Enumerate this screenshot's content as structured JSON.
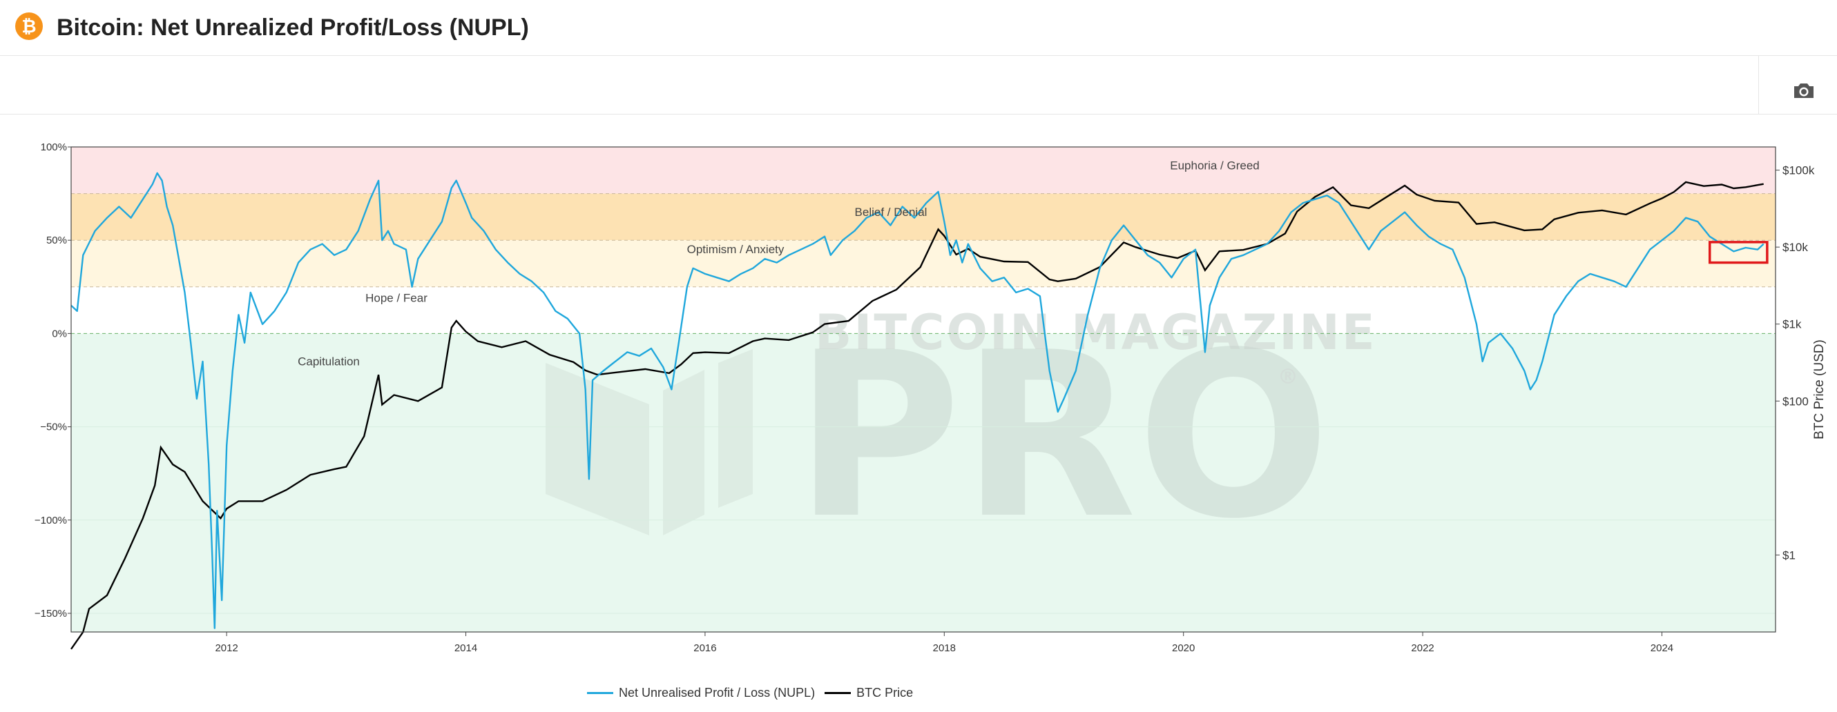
{
  "header": {
    "logo_glyph": "₿",
    "title": "Bitcoin: Net Unrealized Profit/Loss (NUPL)"
  },
  "toolbar": {
    "camera_icon": "camera-icon"
  },
  "watermark": {
    "line1": "BITCOIN MAGAZINE",
    "line2": "PRO",
    "registered": "®"
  },
  "colors": {
    "nupl": "#1fa7dc",
    "price": "#000000",
    "euphoria": "#fde4e6",
    "belief": "#fde2b3",
    "optimism": "#fff6df",
    "hope": "#ffffff",
    "capitulation": "#e8f8ef",
    "highlight": "#e0191b",
    "logo": "#f7931a"
  },
  "chart_data": {
    "type": "line",
    "x_range": [
      2010.7,
      2024.95
    ],
    "x_ticks": [
      "2012",
      "2014",
      "2016",
      "2018",
      "2020",
      "2022",
      "2024"
    ],
    "y_left": {
      "range": [
        -160,
        100
      ],
      "ticks": [
        "100%",
        "50%",
        "0%",
        "−50%",
        "−100%",
        "−150%"
      ]
    },
    "y_right": {
      "type": "log",
      "range": [
        0.1,
        200000
      ],
      "ticks": [
        "$100k",
        "$10k",
        "$1k",
        "$100",
        "$1"
      ],
      "label": "BTC Price (USD)"
    },
    "zones": [
      {
        "name": "Euphoria / Greed",
        "from": 75,
        "to": 100
      },
      {
        "name": "Belief / Denial",
        "from": 50,
        "to": 75
      },
      {
        "name": "Optimism / Anxiety",
        "from": 25,
        "to": 50
      },
      {
        "name": "Hope / Fear",
        "from": 0,
        "to": 25
      },
      {
        "name": "Capitulation",
        "from": -160,
        "to": 0
      }
    ],
    "highlight_box": {
      "x": [
        2024.4,
        2024.88
      ],
      "y": [
        38,
        49
      ]
    },
    "series": [
      {
        "name": "Net Unrealised Profit / Loss (NUPL)",
        "points": [
          [
            2010.7,
            15
          ],
          [
            2010.75,
            12
          ],
          [
            2010.8,
            42
          ],
          [
            2010.9,
            55
          ],
          [
            2011.0,
            62
          ],
          [
            2011.1,
            68
          ],
          [
            2011.2,
            62
          ],
          [
            2011.3,
            72
          ],
          [
            2011.38,
            80
          ],
          [
            2011.42,
            86
          ],
          [
            2011.46,
            82
          ],
          [
            2011.5,
            68
          ],
          [
            2011.55,
            58
          ],
          [
            2011.6,
            40
          ],
          [
            2011.65,
            22
          ],
          [
            2011.7,
            -5
          ],
          [
            2011.75,
            -35
          ],
          [
            2011.8,
            -15
          ],
          [
            2011.85,
            -70
          ],
          [
            2011.88,
            -120
          ],
          [
            2011.9,
            -158
          ],
          [
            2011.92,
            -95
          ],
          [
            2011.96,
            -143
          ],
          [
            2012.0,
            -60
          ],
          [
            2012.05,
            -20
          ],
          [
            2012.1,
            10
          ],
          [
            2012.15,
            -5
          ],
          [
            2012.2,
            22
          ],
          [
            2012.3,
            5
          ],
          [
            2012.4,
            12
          ],
          [
            2012.5,
            22
          ],
          [
            2012.6,
            38
          ],
          [
            2012.7,
            45
          ],
          [
            2012.8,
            48
          ],
          [
            2012.9,
            42
          ],
          [
            2013.0,
            45
          ],
          [
            2013.1,
            55
          ],
          [
            2013.2,
            72
          ],
          [
            2013.27,
            82
          ],
          [
            2013.3,
            50
          ],
          [
            2013.35,
            55
          ],
          [
            2013.4,
            48
          ],
          [
            2013.5,
            45
          ],
          [
            2013.55,
            25
          ],
          [
            2013.6,
            40
          ],
          [
            2013.7,
            50
          ],
          [
            2013.8,
            60
          ],
          [
            2013.88,
            78
          ],
          [
            2013.92,
            82
          ],
          [
            2014.0,
            70
          ],
          [
            2014.05,
            62
          ],
          [
            2014.15,
            55
          ],
          [
            2014.25,
            45
          ],
          [
            2014.35,
            38
          ],
          [
            2014.45,
            32
          ],
          [
            2014.55,
            28
          ],
          [
            2014.65,
            22
          ],
          [
            2014.75,
            12
          ],
          [
            2014.85,
            8
          ],
          [
            2014.95,
            0
          ],
          [
            2015.0,
            -30
          ],
          [
            2015.03,
            -78
          ],
          [
            2015.06,
            -25
          ],
          [
            2015.15,
            -20
          ],
          [
            2015.25,
            -15
          ],
          [
            2015.35,
            -10
          ],
          [
            2015.45,
            -12
          ],
          [
            2015.55,
            -8
          ],
          [
            2015.65,
            -18
          ],
          [
            2015.72,
            -30
          ],
          [
            2015.78,
            -5
          ],
          [
            2015.85,
            25
          ],
          [
            2015.9,
            35
          ],
          [
            2016.0,
            32
          ],
          [
            2016.1,
            30
          ],
          [
            2016.2,
            28
          ],
          [
            2016.3,
            32
          ],
          [
            2016.4,
            35
          ],
          [
            2016.5,
            40
          ],
          [
            2016.6,
            38
          ],
          [
            2016.7,
            42
          ],
          [
            2016.8,
            45
          ],
          [
            2016.9,
            48
          ],
          [
            2017.0,
            52
          ],
          [
            2017.05,
            42
          ],
          [
            2017.15,
            50
          ],
          [
            2017.25,
            55
          ],
          [
            2017.35,
            62
          ],
          [
            2017.45,
            65
          ],
          [
            2017.55,
            58
          ],
          [
            2017.65,
            68
          ],
          [
            2017.75,
            62
          ],
          [
            2017.85,
            70
          ],
          [
            2017.95,
            76
          ],
          [
            2018.0,
            60
          ],
          [
            2018.05,
            42
          ],
          [
            2018.1,
            50
          ],
          [
            2018.15,
            38
          ],
          [
            2018.2,
            48
          ],
          [
            2018.3,
            35
          ],
          [
            2018.4,
            28
          ],
          [
            2018.5,
            30
          ],
          [
            2018.6,
            22
          ],
          [
            2018.7,
            24
          ],
          [
            2018.8,
            20
          ],
          [
            2018.88,
            -20
          ],
          [
            2018.95,
            -42
          ],
          [
            2019.0,
            -35
          ],
          [
            2019.1,
            -20
          ],
          [
            2019.2,
            10
          ],
          [
            2019.3,
            35
          ],
          [
            2019.4,
            50
          ],
          [
            2019.5,
            58
          ],
          [
            2019.6,
            50
          ],
          [
            2019.7,
            42
          ],
          [
            2019.8,
            38
          ],
          [
            2019.9,
            30
          ],
          [
            2020.0,
            40
          ],
          [
            2020.1,
            45
          ],
          [
            2020.18,
            -10
          ],
          [
            2020.22,
            15
          ],
          [
            2020.3,
            30
          ],
          [
            2020.4,
            40
          ],
          [
            2020.5,
            42
          ],
          [
            2020.6,
            45
          ],
          [
            2020.7,
            48
          ],
          [
            2020.8,
            55
          ],
          [
            2020.9,
            65
          ],
          [
            2021.0,
            70
          ],
          [
            2021.1,
            72
          ],
          [
            2021.2,
            74
          ],
          [
            2021.3,
            70
          ],
          [
            2021.4,
            60
          ],
          [
            2021.5,
            50
          ],
          [
            2021.55,
            45
          ],
          [
            2021.65,
            55
          ],
          [
            2021.75,
            60
          ],
          [
            2021.85,
            65
          ],
          [
            2021.95,
            58
          ],
          [
            2022.05,
            52
          ],
          [
            2022.15,
            48
          ],
          [
            2022.25,
            45
          ],
          [
            2022.35,
            30
          ],
          [
            2022.45,
            5
          ],
          [
            2022.5,
            -15
          ],
          [
            2022.55,
            -5
          ],
          [
            2022.65,
            0
          ],
          [
            2022.75,
            -8
          ],
          [
            2022.85,
            -20
          ],
          [
            2022.9,
            -30
          ],
          [
            2022.95,
            -25
          ],
          [
            2023.0,
            -15
          ],
          [
            2023.1,
            10
          ],
          [
            2023.2,
            20
          ],
          [
            2023.3,
            28
          ],
          [
            2023.4,
            32
          ],
          [
            2023.5,
            30
          ],
          [
            2023.6,
            28
          ],
          [
            2023.7,
            25
          ],
          [
            2023.8,
            35
          ],
          [
            2023.9,
            45
          ],
          [
            2024.0,
            50
          ],
          [
            2024.1,
            55
          ],
          [
            2024.2,
            62
          ],
          [
            2024.3,
            60
          ],
          [
            2024.4,
            52
          ],
          [
            2024.5,
            48
          ],
          [
            2024.6,
            44
          ],
          [
            2024.7,
            46
          ],
          [
            2024.8,
            45
          ],
          [
            2024.85,
            48
          ]
        ]
      },
      {
        "name": "BTC Price",
        "points": [
          [
            2010.7,
            0.06
          ],
          [
            2010.8,
            0.1
          ],
          [
            2010.85,
            0.2
          ],
          [
            2011.0,
            0.3
          ],
          [
            2011.15,
            0.9
          ],
          [
            2011.3,
            3
          ],
          [
            2011.4,
            8
          ],
          [
            2011.45,
            25
          ],
          [
            2011.55,
            15
          ],
          [
            2011.65,
            12
          ],
          [
            2011.8,
            5
          ],
          [
            2011.95,
            3
          ],
          [
            2012.0,
            4
          ],
          [
            2012.1,
            5
          ],
          [
            2012.3,
            5
          ],
          [
            2012.5,
            7
          ],
          [
            2012.7,
            11
          ],
          [
            2012.9,
            13
          ],
          [
            2013.0,
            14
          ],
          [
            2013.15,
            35
          ],
          [
            2013.27,
            220
          ],
          [
            2013.3,
            90
          ],
          [
            2013.4,
            120
          ],
          [
            2013.6,
            100
          ],
          [
            2013.8,
            150
          ],
          [
            2013.88,
            900
          ],
          [
            2013.92,
            1100
          ],
          [
            2014.0,
            800
          ],
          [
            2014.1,
            600
          ],
          [
            2014.3,
            500
          ],
          [
            2014.5,
            600
          ],
          [
            2014.7,
            400
          ],
          [
            2014.9,
            320
          ],
          [
            2015.0,
            250
          ],
          [
            2015.1,
            220
          ],
          [
            2015.3,
            240
          ],
          [
            2015.5,
            260
          ],
          [
            2015.7,
            230
          ],
          [
            2015.8,
            300
          ],
          [
            2015.9,
            420
          ],
          [
            2016.0,
            430
          ],
          [
            2016.2,
            420
          ],
          [
            2016.4,
            600
          ],
          [
            2016.5,
            650
          ],
          [
            2016.7,
            620
          ],
          [
            2016.9,
            780
          ],
          [
            2017.0,
            1000
          ],
          [
            2017.2,
            1100
          ],
          [
            2017.4,
            2000
          ],
          [
            2017.6,
            2800
          ],
          [
            2017.8,
            5500
          ],
          [
            2017.95,
            17000
          ],
          [
            2018.0,
            14000
          ],
          [
            2018.1,
            8000
          ],
          [
            2018.2,
            9500
          ],
          [
            2018.3,
            7500
          ],
          [
            2018.5,
            6500
          ],
          [
            2018.7,
            6400
          ],
          [
            2018.88,
            3800
          ],
          [
            2018.95,
            3600
          ],
          [
            2019.1,
            3900
          ],
          [
            2019.3,
            5500
          ],
          [
            2019.5,
            11500
          ],
          [
            2019.6,
            10000
          ],
          [
            2019.8,
            8000
          ],
          [
            2019.95,
            7200
          ],
          [
            2020.1,
            9000
          ],
          [
            2020.18,
            5000
          ],
          [
            2020.3,
            8800
          ],
          [
            2020.5,
            9200
          ],
          [
            2020.7,
            11000
          ],
          [
            2020.85,
            15000
          ],
          [
            2020.95,
            29000
          ],
          [
            2021.1,
            45000
          ],
          [
            2021.25,
            60000
          ],
          [
            2021.4,
            35000
          ],
          [
            2021.55,
            32000
          ],
          [
            2021.7,
            45000
          ],
          [
            2021.85,
            63000
          ],
          [
            2021.95,
            48000
          ],
          [
            2022.1,
            40000
          ],
          [
            2022.3,
            38000
          ],
          [
            2022.45,
            20000
          ],
          [
            2022.6,
            21000
          ],
          [
            2022.85,
            16500
          ],
          [
            2023.0,
            17000
          ],
          [
            2023.1,
            23000
          ],
          [
            2023.3,
            28000
          ],
          [
            2023.5,
            30000
          ],
          [
            2023.7,
            26500
          ],
          [
            2023.9,
            37000
          ],
          [
            2024.0,
            43000
          ],
          [
            2024.1,
            52000
          ],
          [
            2024.2,
            70000
          ],
          [
            2024.35,
            62000
          ],
          [
            2024.5,
            65000
          ],
          [
            2024.6,
            58000
          ],
          [
            2024.7,
            60000
          ],
          [
            2024.8,
            64000
          ],
          [
            2024.85,
            66000
          ]
        ]
      }
    ]
  }
}
